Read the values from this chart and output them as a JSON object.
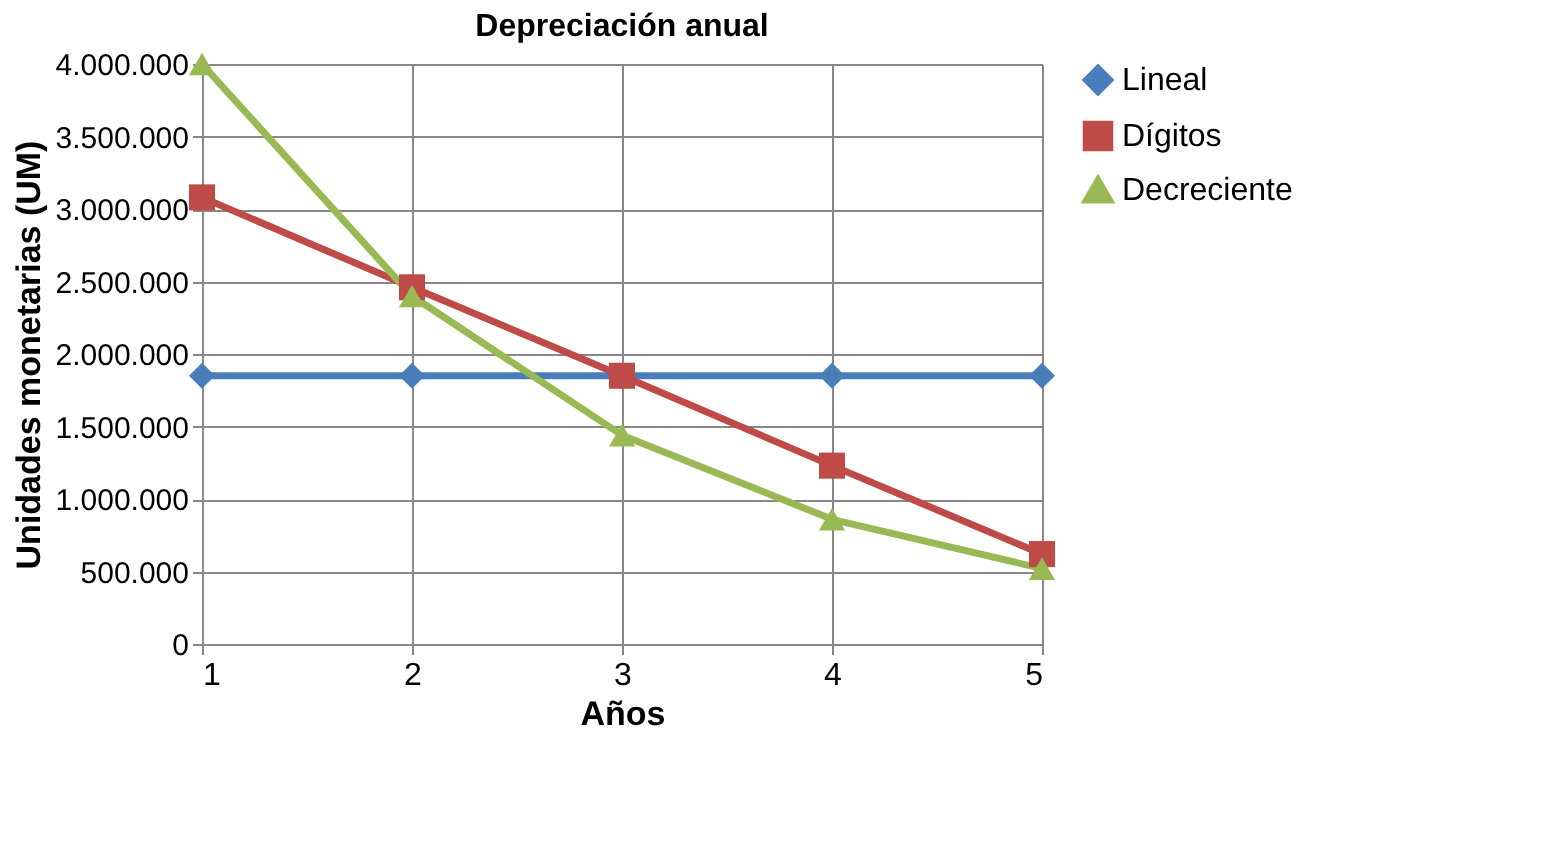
{
  "chart_data": {
    "type": "line",
    "title": "Depreciación anual",
    "xlabel": "Años",
    "ylabel": "Unidades monetarias (UM)",
    "x": [
      1,
      2,
      3,
      4,
      5
    ],
    "xlim": [
      1,
      5
    ],
    "xticks": [
      1,
      2,
      3,
      4,
      5
    ],
    "ylim": [
      0,
      4000000
    ],
    "yticks": [
      0,
      {
        "value": 500000,
        "label": "500.000"
      },
      {
        "value": 1000000,
        "label": "1.000.000"
      },
      {
        "value": 1500000,
        "label": "1.500.000"
      },
      {
        "value": 2000000,
        "label": "2.000.000"
      },
      {
        "value": 2500000,
        "label": "2.500.000"
      },
      {
        "value": 3000000,
        "label": "3.000.000"
      },
      {
        "value": 3500000,
        "label": "3.500.000"
      },
      {
        "value": 4000000,
        "label": "4.000.000"
      }
    ],
    "series": [
      {
        "name": "Lineal",
        "color": "#4a7ebb",
        "marker": "diamond",
        "values": [
          1850000,
          1850000,
          1850000,
          1850000,
          1850000
        ]
      },
      {
        "name": "Dígitos",
        "color": "#be4b48",
        "marker": "square",
        "values": [
          3080000,
          2460000,
          1850000,
          1230000,
          620000
        ]
      },
      {
        "name": "Decreciente",
        "color": "#98b954",
        "marker": "triangle",
        "values": [
          4000000,
          2400000,
          1440000,
          860000,
          520000
        ]
      }
    ],
    "grid": true,
    "legend": "right",
    "line_style": "solid"
  }
}
